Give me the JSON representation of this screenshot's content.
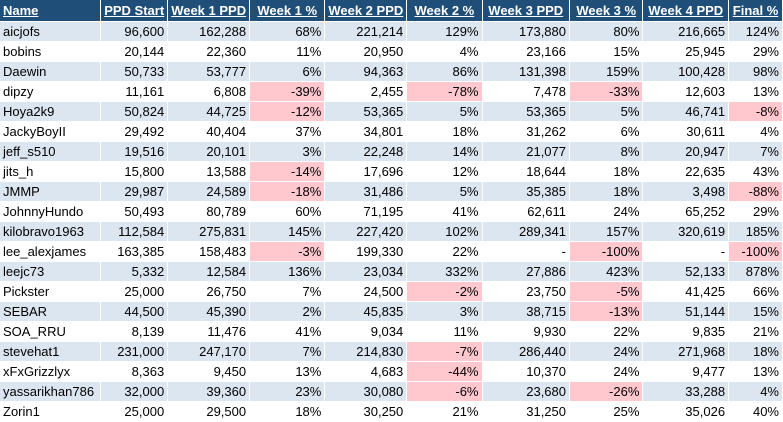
{
  "columns": [
    "Name",
    "PPD Start",
    "Week 1 PPD",
    "Week 1 %",
    "Week 2 PPD",
    "Week 2 %",
    "Week 3 PPD",
    "Week 3 %",
    "Week 4 PPD",
    "Final %"
  ],
  "colors": {
    "header_bg": "#1f4e79",
    "band": "#dce6f1",
    "negative_highlight": "#ffc7ce"
  },
  "rows": [
    {
      "name": "aicjofs",
      "start": "96,600",
      "w1": "162,288",
      "w1p": "68%",
      "w2": "221,214",
      "w2p": "129%",
      "w3": "173,880",
      "w3p": "80%",
      "w4": "216,665",
      "fp": "124%"
    },
    {
      "name": "bobins",
      "start": "20,144",
      "w1": "22,360",
      "w1p": "11%",
      "w2": "20,950",
      "w2p": "4%",
      "w3": "23,166",
      "w3p": "15%",
      "w4": "25,945",
      "fp": "29%"
    },
    {
      "name": "Daewin",
      "start": "50,733",
      "w1": "53,777",
      "w1p": "6%",
      "w2": "94,363",
      "w2p": "86%",
      "w3": "131,398",
      "w3p": "159%",
      "w4": "100,428",
      "fp": "98%"
    },
    {
      "name": "dipzy",
      "start": "11,161",
      "w1": "6,808",
      "w1p": "-39%",
      "w2": "2,455",
      "w2p": "-78%",
      "w3": "7,478",
      "w3p": "-33%",
      "w4": "12,603",
      "fp": "13%"
    },
    {
      "name": "Hoya2k9",
      "start": "50,824",
      "w1": "44,725",
      "w1p": "-12%",
      "w2": "53,365",
      "w2p": "5%",
      "w3": "53,365",
      "w3p": "5%",
      "w4": "46,741",
      "fp": "-8%"
    },
    {
      "name": "JackyBoyII",
      "start": "29,492",
      "w1": "40,404",
      "w1p": "37%",
      "w2": "34,801",
      "w2p": "18%",
      "w3": "31,262",
      "w3p": "6%",
      "w4": "30,611",
      "fp": "4%"
    },
    {
      "name": "jeff_s510",
      "start": "19,516",
      "w1": "20,101",
      "w1p": "3%",
      "w2": "22,248",
      "w2p": "14%",
      "w3": "21,077",
      "w3p": "8%",
      "w4": "20,947",
      "fp": "7%"
    },
    {
      "name": "jits_h",
      "start": "15,800",
      "w1": "13,588",
      "w1p": "-14%",
      "w2": "17,696",
      "w2p": "12%",
      "w3": "18,644",
      "w3p": "18%",
      "w4": "22,635",
      "fp": "43%"
    },
    {
      "name": "JMMP",
      "start": "29,987",
      "w1": "24,589",
      "w1p": "-18%",
      "w2": "31,486",
      "w2p": "5%",
      "w3": "35,385",
      "w3p": "18%",
      "w4": "3,498",
      "fp": "-88%"
    },
    {
      "name": "JohnnyHundo",
      "start": "50,493",
      "w1": "80,789",
      "w1p": "60%",
      "w2": "71,195",
      "w2p": "41%",
      "w3": "62,611",
      "w3p": "24%",
      "w4": "65,252",
      "fp": "29%"
    },
    {
      "name": "kilobravo1963",
      "start": "112,584",
      "w1": "275,831",
      "w1p": "145%",
      "w2": "227,420",
      "w2p": "102%",
      "w3": "289,341",
      "w3p": "157%",
      "w4": "320,619",
      "fp": "185%"
    },
    {
      "name": "lee_alexjames",
      "start": "163,385",
      "w1": "158,483",
      "w1p": "-3%",
      "w2": "199,330",
      "w2p": "22%",
      "w3": "-",
      "w3p": "-100%",
      "w4": "-",
      "fp": "-100%"
    },
    {
      "name": "leejc73",
      "start": "5,332",
      "w1": "12,584",
      "w1p": "136%",
      "w2": "23,034",
      "w2p": "332%",
      "w3": "27,886",
      "w3p": "423%",
      "w4": "52,133",
      "fp": "878%"
    },
    {
      "name": "Pickster",
      "start": "25,000",
      "w1": "26,750",
      "w1p": "7%",
      "w2": "24,500",
      "w2p": "-2%",
      "w3": "23,750",
      "w3p": "-5%",
      "w4": "41,425",
      "fp": "66%"
    },
    {
      "name": "SEBAR",
      "start": "44,500",
      "w1": "45,390",
      "w1p": "2%",
      "w2": "45,835",
      "w2p": "3%",
      "w3": "38,715",
      "w3p": "-13%",
      "w4": "51,144",
      "fp": "15%"
    },
    {
      "name": "SOA_RRU",
      "start": "8,139",
      "w1": "11,476",
      "w1p": "41%",
      "w2": "9,034",
      "w2p": "11%",
      "w3": "9,930",
      "w3p": "22%",
      "w4": "9,835",
      "fp": "21%"
    },
    {
      "name": "stevehat1",
      "start": "231,000",
      "w1": "247,170",
      "w1p": "7%",
      "w2": "214,830",
      "w2p": "-7%",
      "w3": "286,440",
      "w3p": "24%",
      "w4": "271,968",
      "fp": "18%"
    },
    {
      "name": "xFxGrizzlyx",
      "start": "8,363",
      "w1": "9,450",
      "w1p": "13%",
      "w2": "4,683",
      "w2p": "-44%",
      "w3": "10,370",
      "w3p": "24%",
      "w4": "9,477",
      "fp": "13%"
    },
    {
      "name": "yassarikhan786",
      "start": "32,000",
      "w1": "39,360",
      "w1p": "23%",
      "w2": "30,080",
      "w2p": "-6%",
      "w3": "23,680",
      "w3p": "-26%",
      "w4": "33,288",
      "fp": "4%"
    },
    {
      "name": "Zorin1",
      "start": "25,000",
      "w1": "29,500",
      "w1p": "18%",
      "w2": "30,250",
      "w2p": "21%",
      "w3": "31,250",
      "w3p": "25%",
      "w4": "35,026",
      "fp": "40%"
    }
  ]
}
